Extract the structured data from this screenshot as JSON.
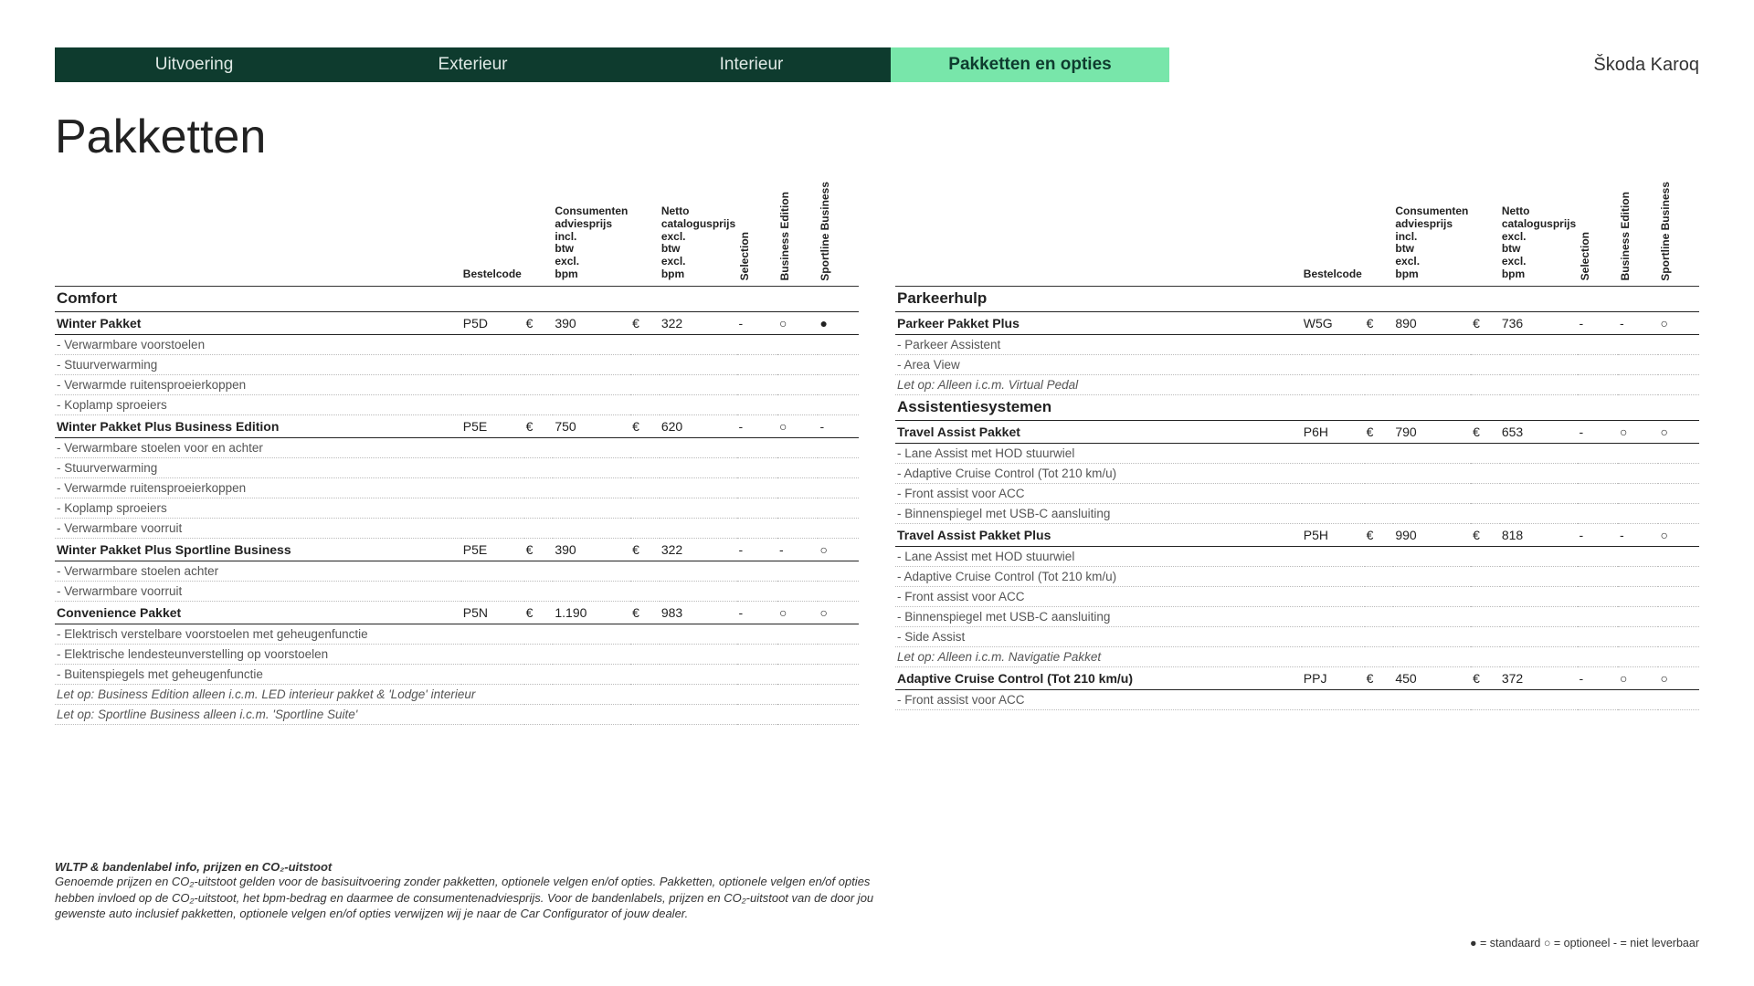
{
  "brand": "Škoda Karoq",
  "pageTitle": "Pakketten",
  "tabs": [
    "Uitvoering",
    "Exterieur",
    "Interieur",
    "Pakketten en opties"
  ],
  "activeTab": 3,
  "colors": {
    "navDark": "#0e3b2e",
    "navActive": "#78e6aa"
  },
  "columnHeaders": {
    "bestelcode": "Bestelcode",
    "consPrijs": "Consumenten adviesprijs incl. btw excl. bpm",
    "nettoPrijs": "Netto catalogusprijs excl. btw excl. bpm",
    "trims": [
      "Selection",
      "Business Edition",
      "Sportline Business"
    ]
  },
  "availabilityGlyphs": {
    "std": "●",
    "opt": "○",
    "na": "-"
  },
  "left": {
    "sections": [
      {
        "title": "Comfort",
        "items": [
          {
            "name": "Winter Pakket",
            "code": "P5D",
            "price1": "390",
            "price2": "322",
            "avail": [
              "-",
              "○",
              "●"
            ],
            "features": [
              "- Verwarmbare voorstoelen",
              "- Stuurverwarming",
              "- Verwarmde ruitensproeierkoppen",
              "- Koplamp sproeiers"
            ]
          },
          {
            "name": "Winter Pakket Plus Business Edition",
            "code": "P5E",
            "price1": "750",
            "price2": "620",
            "avail": [
              "-",
              "○",
              "-"
            ],
            "features": [
              "- Verwarmbare stoelen voor en achter",
              "- Stuurverwarming",
              "- Verwarmde ruitensproeierkoppen",
              "- Koplamp sproeiers",
              "- Verwarmbare voorruit"
            ]
          },
          {
            "name": "Winter Pakket Plus Sportline Business",
            "code": "P5E",
            "price1": "390",
            "price2": "322",
            "avail": [
              "-",
              "-",
              "○"
            ],
            "features": [
              "- Verwarmbare stoelen achter",
              "- Verwarmbare voorruit"
            ]
          },
          {
            "name": "Convenience Pakket",
            "code": "P5N",
            "price1": "1.190",
            "price2": "983",
            "avail": [
              "-",
              "○",
              "○"
            ],
            "features": [
              "- Elektrisch verstelbare voorstoelen met geheugenfunctie",
              "- Elektrische lendesteunverstelling op voorstoelen",
              "- Buitenspiegels met geheugenfunctie"
            ],
            "notes": [
              "Let op: Business Edition alleen i.c.m. LED interieur pakket & 'Lodge' interieur",
              "Let op: Sportline Business alleen i.c.m. 'Sportline Suite'"
            ]
          }
        ]
      }
    ]
  },
  "right": {
    "sections": [
      {
        "title": "Parkeerhulp",
        "items": [
          {
            "name": "Parkeer Pakket Plus",
            "code": "W5G",
            "price1": "890",
            "price2": "736",
            "avail": [
              "-",
              "-",
              "○"
            ],
            "features": [
              "- Parkeer Assistent",
              "- Area View"
            ],
            "notes": [
              "Let op: Alleen i.c.m. Virtual Pedal"
            ]
          }
        ]
      },
      {
        "title": "Assistentiesystemen",
        "items": [
          {
            "name": "Travel Assist Pakket",
            "code": "P6H",
            "price1": "790",
            "price2": "653",
            "avail": [
              "-",
              "○",
              "○"
            ],
            "features": [
              "- Lane Assist met HOD stuurwiel",
              "- Adaptive Cruise Control (Tot 210 km/u)",
              "- Front assist voor ACC",
              "- Binnenspiegel met USB-C aansluiting"
            ]
          },
          {
            "name": "Travel Assist Pakket Plus",
            "code": "P5H",
            "price1": "990",
            "price2": "818",
            "avail": [
              "-",
              "-",
              "○"
            ],
            "features": [
              "- Lane Assist met HOD stuurwiel",
              "- Adaptive Cruise Control (Tot 210 km/u)",
              "- Front assist voor ACC",
              "- Binnenspiegel met USB-C aansluiting",
              "- Side Assist"
            ],
            "notes": [
              "Let op: Alleen i.c.m. Navigatie Pakket"
            ]
          },
          {
            "name": "Adaptive Cruise Control (Tot 210 km/u)",
            "code": "PPJ",
            "price1": "450",
            "price2": "372",
            "avail": [
              "-",
              "○",
              "○"
            ],
            "features": [
              "- Front assist voor ACC"
            ]
          }
        ]
      }
    ]
  },
  "footnote": {
    "title": "WLTP & bandenlabel info, prijzen en CO₂-uitstoot",
    "body": "Genoemde prijzen en CO₂-uitstoot gelden voor de basisuitvoering zonder pakketten, optionele velgen en/of opties. Pakketten, optionele velgen en/of opties hebben invloed op de CO₂-uitstoot, het bpm-bedrag en daarmee de consumentenadviesprijs. Voor de bandenlabels, prijzen en CO₂-uitstoot van de door jou gewenste auto inclusief pakketten, optionele velgen en/of opties verwijzen wij je naar de Car Configurator of jouw dealer."
  },
  "legend": "● = standaard   ○ = optioneel   - = niet leverbaar"
}
